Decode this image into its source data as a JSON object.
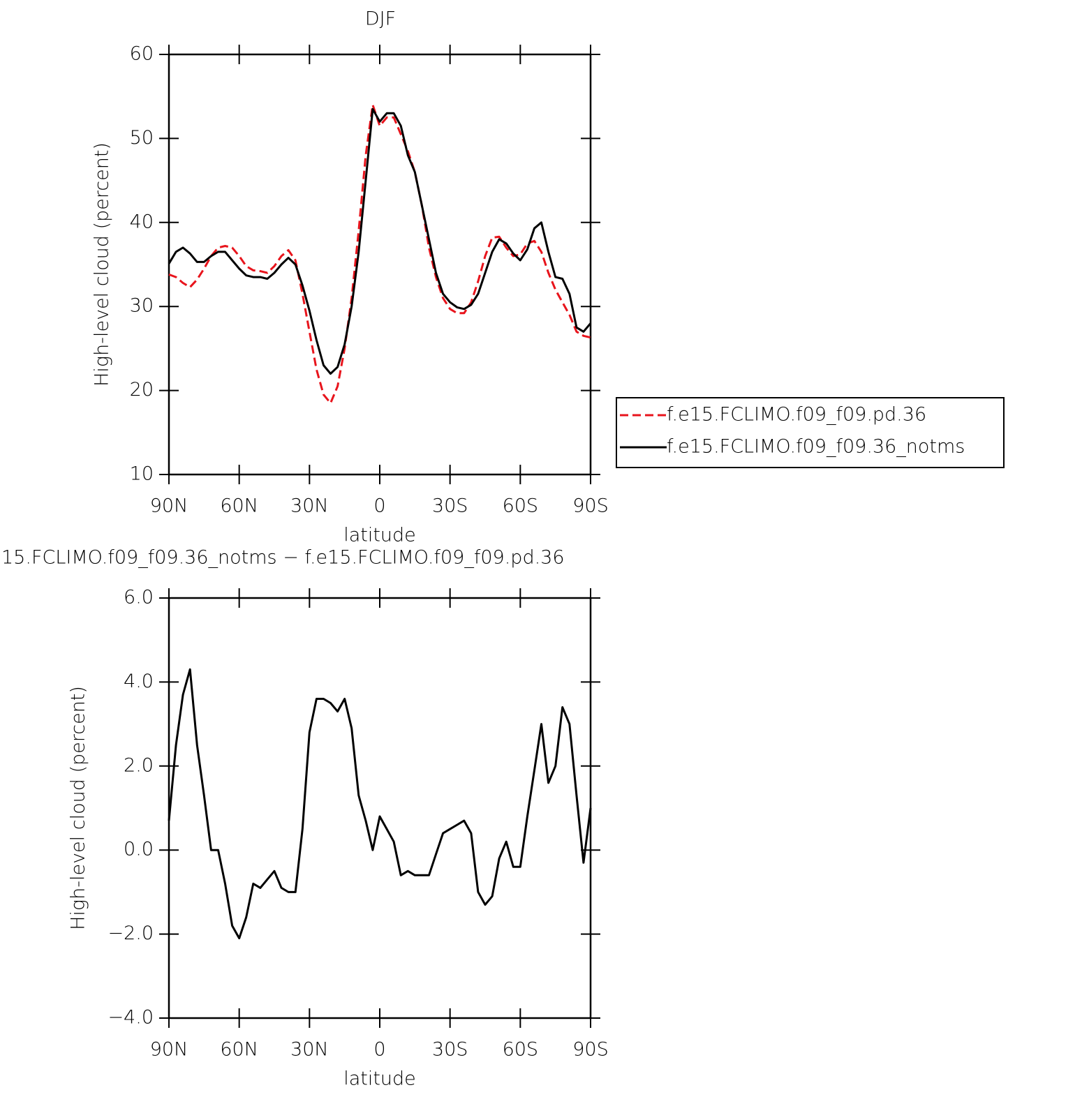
{
  "chart_data": [
    {
      "type": "line",
      "title": "DJF",
      "xlabel": "latitude",
      "ylabel": "High-level cloud (percent)",
      "xlim": [
        90,
        -90
      ],
      "ylim": [
        10,
        60
      ],
      "xticks": [
        {
          "value": 90,
          "label": "90N"
        },
        {
          "value": 60,
          "label": "60N"
        },
        {
          "value": 30,
          "label": "30N"
        },
        0,
        {
          "value": -30,
          "label": "30S"
        },
        {
          "value": -60,
          "label": "60S"
        },
        {
          "value": -90,
          "label": "90S"
        }
      ],
      "yticks": [
        10,
        20,
        30,
        40,
        50,
        60
      ],
      "legend": "right",
      "x": [
        90,
        87,
        84,
        81,
        78,
        75,
        72,
        69,
        66,
        63,
        60,
        57,
        54,
        51,
        48,
        45,
        42,
        39,
        36,
        33,
        30,
        27,
        24,
        21,
        18,
        15,
        12,
        9,
        6,
        3,
        0,
        -3,
        -6,
        -9,
        -12,
        -15,
        -18,
        -21,
        -24,
        -27,
        -30,
        -33,
        -36,
        -39,
        -42,
        -45,
        -48,
        -51,
        -54,
        -57,
        -60,
        -63,
        -66,
        -69,
        -72,
        -75,
        -78,
        -81,
        -84,
        -87,
        -90
      ],
      "series": [
        {
          "name": "f.e15.FCLIMO.f09_f09.pd.36",
          "color": "#e8141c",
          "dashed": true,
          "values": [
            33.8,
            33.5,
            32.8,
            32.3,
            33.2,
            34.5,
            36.0,
            37.0,
            37.2,
            37.0,
            36.0,
            34.8,
            34.3,
            34.2,
            34.0,
            34.8,
            36.0,
            36.7,
            35.5,
            31.5,
            27,
            22.5,
            19.5,
            18.5,
            20.5,
            25,
            31,
            39,
            48,
            54,
            51.5,
            52.5,
            52.5,
            50.5,
            48.5,
            46,
            42,
            37,
            33.5,
            31,
            29.7,
            29.2,
            29.2,
            30.5,
            33,
            36,
            38.2,
            38.3,
            37.0,
            36.0,
            36.2,
            37.5,
            37.8,
            36.5,
            34,
            32,
            30.5,
            29,
            27,
            26.5,
            26.3
          ]
        },
        {
          "name": "f.e15.FCLIMO.f09_f09.36_notms",
          "color": "#000000",
          "dashed": false,
          "values": [
            35.1,
            36.5,
            37.0,
            36.3,
            35.3,
            35.3,
            36.0,
            36.5,
            36.5,
            35.5,
            34.5,
            33.7,
            33.5,
            33.5,
            33.3,
            34.0,
            35.0,
            35.8,
            35.0,
            32.5,
            29.5,
            26.0,
            23.0,
            22.0,
            22.8,
            25.5,
            30.0,
            36.5,
            45,
            53.5,
            52.0,
            53.0,
            53.0,
            51.5,
            48,
            46,
            42,
            38,
            34,
            31.5,
            30.5,
            29.9,
            29.7,
            30.2,
            31.5,
            34,
            36.5,
            38,
            37.5,
            36.3,
            35.5,
            36.8,
            39.3,
            40.0,
            36.5,
            33.5,
            33.3,
            31.5,
            27.5,
            27.0,
            28.0
          ]
        }
      ]
    },
    {
      "type": "line",
      "title": "15.FCLIMO.f09_f09.36_notms − f.e15.FCLIMO.f09_f09.pd.36",
      "xlabel": "latitude",
      "ylabel": "High-level cloud (percent)",
      "xlim": [
        90,
        -90
      ],
      "ylim": [
        -4,
        6
      ],
      "xticks": [
        {
          "value": 90,
          "label": "90N"
        },
        {
          "value": 60,
          "label": "60N"
        },
        {
          "value": 30,
          "label": "30N"
        },
        0,
        {
          "value": -30,
          "label": "30S"
        },
        {
          "value": -60,
          "label": "60S"
        },
        {
          "value": -90,
          "label": "90S"
        }
      ],
      "yticks": [
        {
          "value": -4,
          "label": "−4.0"
        },
        {
          "value": -2,
          "label": "−2.0"
        },
        {
          "value": 0,
          "label": "0.0"
        },
        {
          "value": 2,
          "label": "2.0"
        },
        {
          "value": 4,
          "label": "4.0"
        },
        {
          "value": 6,
          "label": "6.0"
        }
      ],
      "x": [
        90,
        87,
        84,
        81,
        78,
        75,
        72,
        69,
        66,
        63,
        60,
        57,
        54,
        51,
        48,
        45,
        42,
        39,
        36,
        33,
        30,
        27,
        24,
        21,
        18,
        15,
        12,
        9,
        6,
        3,
        0,
        -3,
        -6,
        -9,
        -12,
        -15,
        -18,
        -21,
        -24,
        -27,
        -30,
        -33,
        -36,
        -39,
        -42,
        -45,
        -48,
        -51,
        -54,
        -57,
        -60,
        -63,
        -66,
        -69,
        -72,
        -75,
        -78,
        -81,
        -84,
        -87,
        -90
      ],
      "series": [
        {
          "color": "#000000",
          "dashed": false,
          "values": [
            0.7,
            2.5,
            3.7,
            4.3,
            2.5,
            1.3,
            0.0,
            0.0,
            -0.8,
            -1.8,
            -2.1,
            -1.6,
            -0.8,
            -0.9,
            -0.7,
            -0.5,
            -0.9,
            -1.0,
            -1.0,
            0.5,
            2.8,
            3.6,
            3.6,
            3.5,
            3.3,
            3.6,
            2.9,
            1.3,
            0.7,
            0.0,
            0.8,
            0.5,
            0.2,
            -0.6,
            -0.5,
            -0.6,
            -0.6,
            -0.6,
            -0.1,
            0.4,
            0.5,
            0.6,
            0.7,
            0.4,
            -1.0,
            -1.3,
            -1.1,
            -0.2,
            0.2,
            -0.4,
            -0.4,
            0.8,
            1.9,
            3.0,
            1.6,
            2.0,
            3.4,
            3.0,
            1.3,
            -0.3,
            1.0
          ]
        }
      ]
    }
  ]
}
